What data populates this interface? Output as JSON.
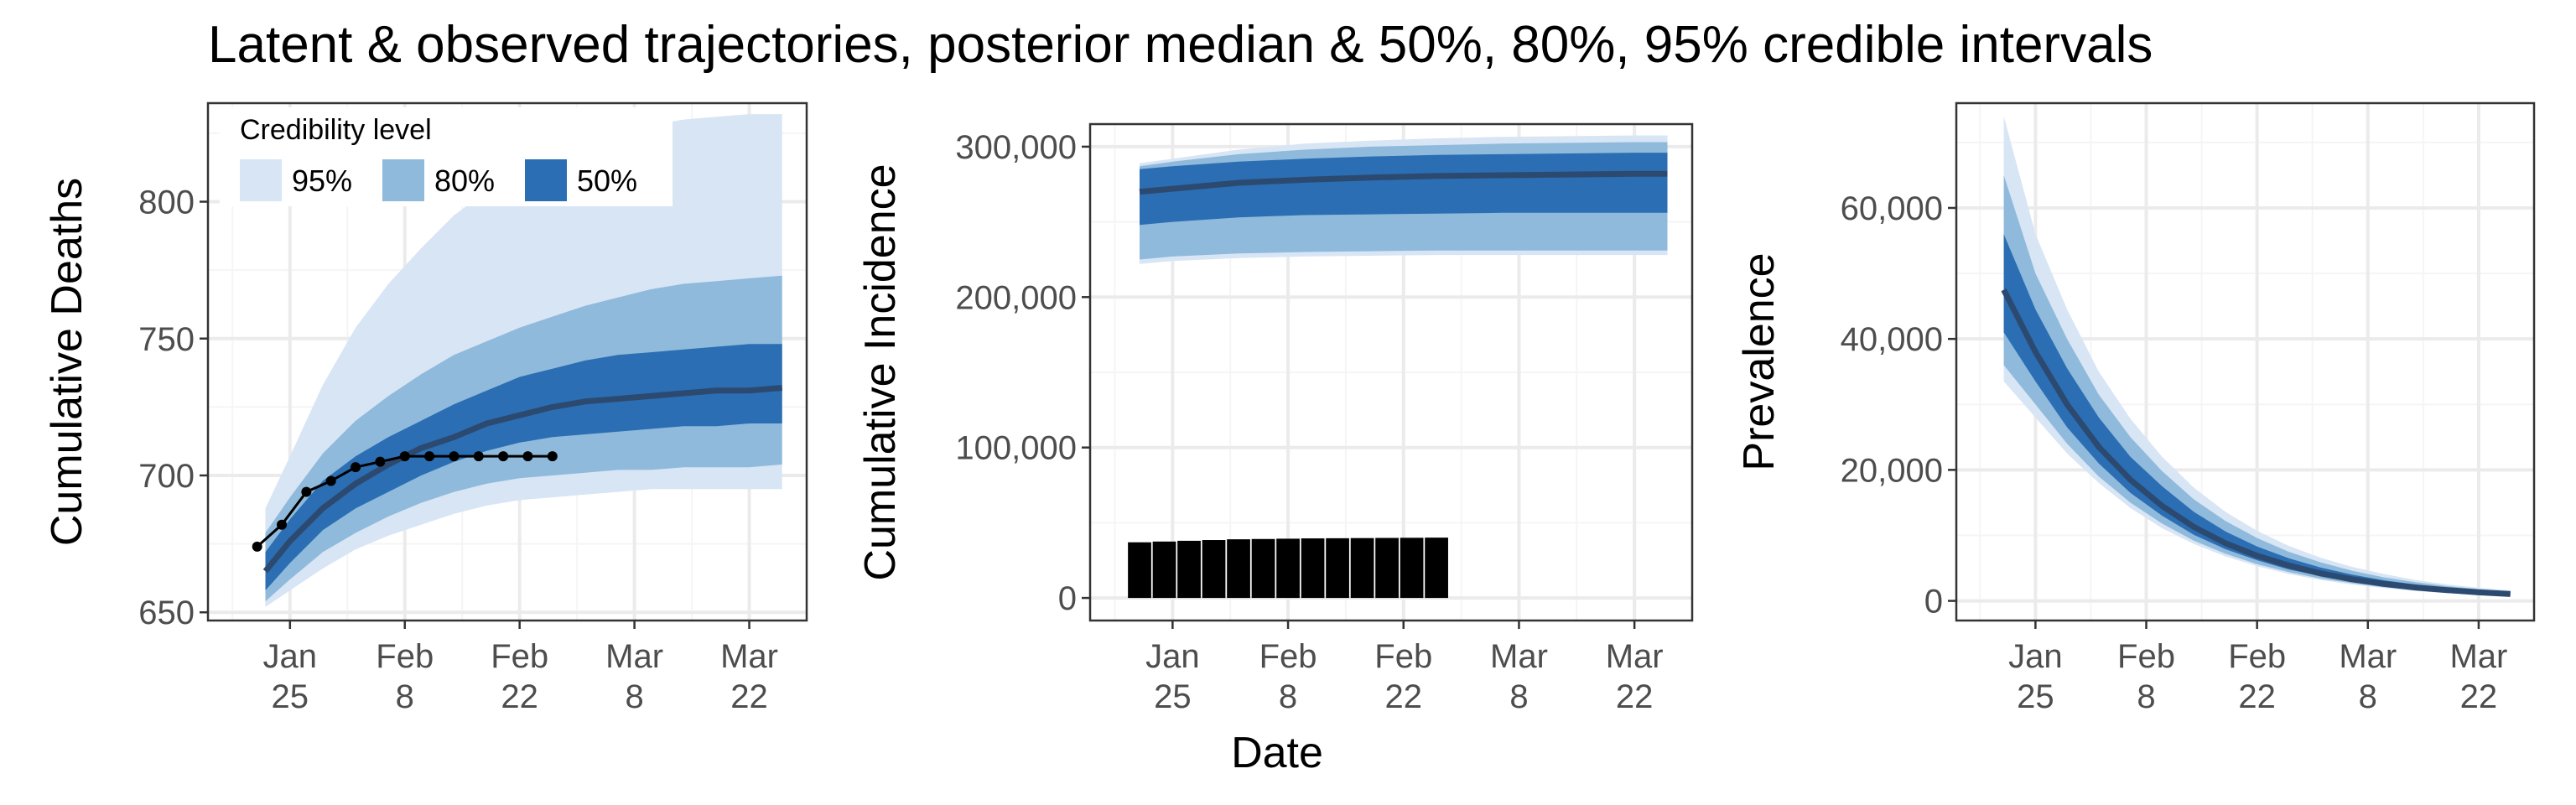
{
  "title": "Latent & observed trajectories, posterior median & 50%, 80%, 95% credible intervals",
  "x_axis_label": "Date",
  "colors": {
    "band95": "#d7e5f5",
    "band80": "#8fbadb",
    "band50": "#2b6eb3",
    "median": "#2c4a70",
    "observed": "#000000",
    "grid_major": "#ebebeb",
    "grid_minor": "#f5f5f5",
    "panel_border": "#333333"
  },
  "legend": {
    "title": "Credibility level",
    "entries": [
      {
        "label": "95%",
        "color": "#d7e5f5"
      },
      {
        "label": "80%",
        "color": "#8fbadb"
      },
      {
        "label": "50%",
        "color": "#2b6eb3"
      }
    ],
    "placement": "top-left inside panel 1"
  },
  "chart_data": [
    {
      "type": "area",
      "ylabel": "Cumulative Deaths",
      "x_ticks": [
        {
          "value": 0,
          "line1": "Jan",
          "line2": "25"
        },
        {
          "value": 14,
          "line1": "Feb",
          "line2": "8"
        },
        {
          "value": 28,
          "line1": "Feb",
          "line2": "22"
        },
        {
          "value": 42,
          "line1": "Mar",
          "line2": "8"
        },
        {
          "value": 56,
          "line1": "Mar",
          "line2": "22"
        }
      ],
      "xlim": [
        -10,
        63
      ],
      "ylim": [
        647,
        836
      ],
      "y_ticks": [
        {
          "value": 650,
          "label": "650"
        },
        {
          "value": 700,
          "label": "700"
        },
        {
          "value": 750,
          "label": "750"
        },
        {
          "value": 800,
          "label": "800"
        }
      ],
      "x": [
        -3,
        0,
        4,
        8,
        12,
        16,
        20,
        24,
        28,
        32,
        36,
        40,
        44,
        48,
        52,
        56,
        60
      ],
      "median": [
        665,
        676,
        688,
        697,
        704,
        710,
        714,
        719,
        722,
        725,
        727,
        728,
        729,
        730,
        731,
        731,
        732
      ],
      "band50": {
        "lower": [
          658,
          668,
          680,
          688,
          694,
          700,
          705,
          709,
          712,
          714,
          715,
          716,
          717,
          718,
          718,
          719,
          719
        ],
        "upper": [
          672,
          684,
          698,
          707,
          714,
          720,
          726,
          731,
          736,
          739,
          742,
          744,
          745,
          746,
          747,
          748,
          748
        ]
      },
      "band80": {
        "lower": [
          654,
          662,
          672,
          679,
          685,
          690,
          694,
          697,
          699,
          700,
          701,
          702,
          702,
          703,
          703,
          703,
          704
        ],
        "upper": [
          679,
          692,
          708,
          720,
          729,
          737,
          744,
          749,
          754,
          758,
          762,
          765,
          768,
          770,
          771,
          772,
          773
        ]
      },
      "band95": {
        "lower": [
          652,
          658,
          666,
          673,
          678,
          682,
          686,
          689,
          691,
          692,
          693,
          694,
          695,
          695,
          695,
          695,
          695
        ],
        "upper": [
          688,
          707,
          733,
          754,
          770,
          783,
          795,
          804,
          811,
          817,
          822,
          825,
          828,
          830,
          831,
          832,
          832
        ]
      },
      "observed": {
        "x": [
          -4,
          -1,
          2,
          5,
          8,
          11,
          14,
          17,
          20,
          23,
          26,
          29,
          32
        ],
        "y": [
          674,
          682,
          694,
          698,
          703,
          705,
          707,
          707,
          707,
          707,
          707,
          707,
          707
        ]
      },
      "observed_style": "line-points"
    },
    {
      "type": "area",
      "ylabel": "Cumulative Incidence",
      "x_ticks": [
        {
          "value": 0,
          "line1": "Jan",
          "line2": "25"
        },
        {
          "value": 14,
          "line1": "Feb",
          "line2": "8"
        },
        {
          "value": 28,
          "line1": "Feb",
          "line2": "22"
        },
        {
          "value": 42,
          "line1": "Mar",
          "line2": "8"
        },
        {
          "value": 56,
          "line1": "Mar",
          "line2": "22"
        }
      ],
      "xlim": [
        -10,
        63
      ],
      "ylim": [
        -15000,
        315000
      ],
      "y_ticks": [
        {
          "value": 0,
          "label": "0"
        },
        {
          "value": 100000,
          "label": "100,000"
        },
        {
          "value": 200000,
          "label": "200,000"
        },
        {
          "value": 300000,
          "label": "300,000"
        }
      ],
      "x": [
        -4,
        0,
        8,
        16,
        24,
        32,
        40,
        48,
        56,
        60
      ],
      "median": [
        270000,
        272000,
        276000,
        278000,
        279500,
        280500,
        281000,
        281500,
        282000,
        282000
      ],
      "band50": {
        "lower": [
          248000,
          250000,
          253000,
          254500,
          255000,
          255500,
          256000,
          256000,
          256000,
          256000
        ],
        "upper": [
          285000,
          287000,
          290000,
          292000,
          293500,
          294500,
          295000,
          295500,
          296000,
          296000
        ]
      },
      "band80": {
        "lower": [
          225000,
          227000,
          229000,
          230000,
          230500,
          231000,
          231000,
          231000,
          231000,
          231000
        ],
        "upper": [
          287000,
          290000,
          295000,
          298000,
          300000,
          301000,
          302000,
          302500,
          303000,
          303000
        ]
      },
      "band95": {
        "lower": [
          222000,
          224000,
          226000,
          227000,
          227500,
          228000,
          228000,
          228000,
          228000,
          228000
        ],
        "upper": [
          289000,
          292000,
          298000,
          302000,
          304000,
          305500,
          306500,
          307000,
          307500,
          307500
        ]
      },
      "observed": {
        "x": [
          -4,
          -1,
          2,
          5,
          8,
          11,
          14,
          17,
          20,
          23,
          26,
          29,
          32
        ],
        "y": [
          37000,
          37500,
          38000,
          38500,
          39000,
          39200,
          39400,
          39600,
          39700,
          39800,
          39900,
          40000,
          40100
        ]
      },
      "observed_style": "bars"
    },
    {
      "type": "area",
      "ylabel": "Prevalence",
      "x_ticks": [
        {
          "value": 0,
          "line1": "Jan",
          "line2": "25"
        },
        {
          "value": 14,
          "line1": "Feb",
          "line2": "8"
        },
        {
          "value": 28,
          "line1": "Feb",
          "line2": "22"
        },
        {
          "value": 42,
          "line1": "Mar",
          "line2": "8"
        },
        {
          "value": 56,
          "line1": "Mar",
          "line2": "22"
        }
      ],
      "xlim": [
        -10,
        63
      ],
      "ylim": [
        -3000,
        76000
      ],
      "y_ticks": [
        {
          "value": 0,
          "label": "0"
        },
        {
          "value": 20000,
          "label": "20,000"
        },
        {
          "value": 40000,
          "label": "40,000"
        },
        {
          "value": 60000,
          "label": "60,000"
        }
      ],
      "x": [
        -4,
        0,
        4,
        8,
        12,
        16,
        20,
        24,
        28,
        32,
        36,
        40,
        44,
        48,
        52,
        56,
        60
      ],
      "median": [
        47500,
        38000,
        30000,
        23500,
        18500,
        14500,
        11300,
        8800,
        6900,
        5400,
        4200,
        3300,
        2600,
        2050,
        1650,
        1300,
        1050
      ],
      "band50": {
        "lower": [
          41000,
          33500,
          26500,
          21000,
          16500,
          13000,
          10100,
          7900,
          6200,
          4800,
          3800,
          3000,
          2350,
          1850,
          1450,
          1150,
          900
        ],
        "upper": [
          56000,
          44500,
          35500,
          28000,
          22000,
          17500,
          13600,
          10600,
          8300,
          6500,
          5100,
          4000,
          3150,
          2500,
          2000,
          1600,
          1300
        ]
      },
      "band80": {
        "lower": [
          36000,
          30000,
          24000,
          19000,
          15000,
          11800,
          9200,
          7200,
          5600,
          4400,
          3400,
          2700,
          2100,
          1650,
          1300,
          1000,
          800
        ],
        "upper": [
          65000,
          50000,
          40000,
          31500,
          25000,
          19800,
          15500,
          12200,
          9600,
          7500,
          5900,
          4600,
          3600,
          2850,
          2250,
          1800,
          1450
        ]
      },
      "band95": {
        "lower": [
          33500,
          28000,
          22500,
          18000,
          14200,
          11100,
          8700,
          6800,
          5300,
          4100,
          3200,
          2500,
          1950,
          1500,
          1200,
          950,
          750
        ],
        "upper": [
          74000,
          56000,
          44500,
          35000,
          27800,
          22000,
          17300,
          13600,
          10700,
          8400,
          6600,
          5200,
          4100,
          3200,
          2500,
          2000,
          1600
        ]
      },
      "observed": null,
      "observed_style": "none"
    }
  ]
}
